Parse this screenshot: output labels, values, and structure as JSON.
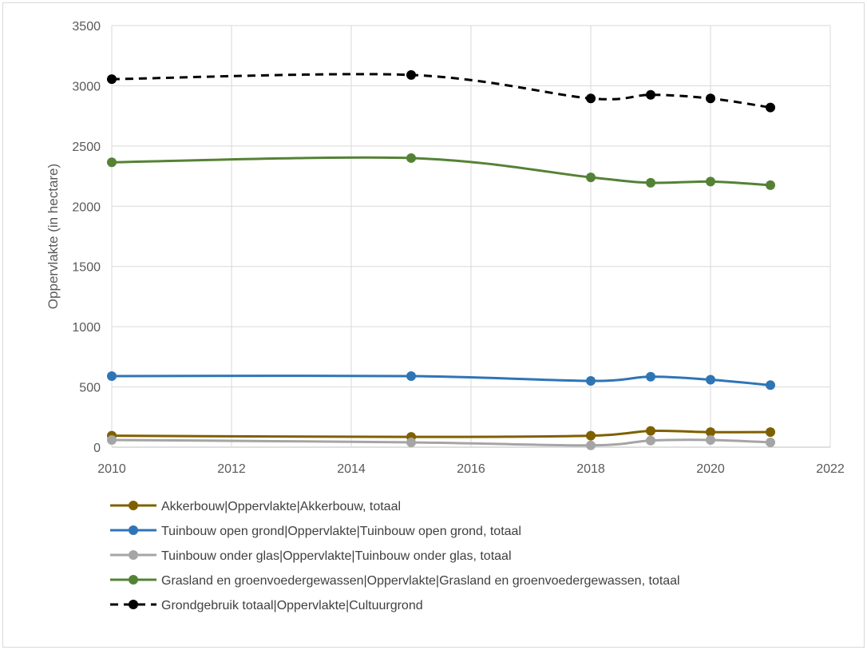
{
  "chart_data": {
    "type": "line",
    "title": "",
    "xlabel": "",
    "ylabel": "Oppervlakte (in hectare)",
    "xlim": [
      2010,
      2022
    ],
    "ylim": [
      0,
      3500
    ],
    "x_ticks": [
      2010,
      2012,
      2014,
      2016,
      2018,
      2020,
      2022
    ],
    "y_ticks": [
      0,
      500,
      1000,
      1500,
      2000,
      2500,
      3000,
      3500
    ],
    "grid": true,
    "legend_position": "bottom",
    "x": [
      2010,
      2015,
      2018,
      2019,
      2020,
      2021
    ],
    "series": [
      {
        "name": "Akkerbouw|Oppervlakte|Akkerbouw, totaal",
        "color": "#7f6000",
        "dashed": false,
        "values": [
          95,
          85,
          95,
          135,
          125,
          125
        ]
      },
      {
        "name": "Tuinbouw open grond|Oppervlakte|Tuinbouw open grond, totaal",
        "color": "#2e75b6",
        "dashed": false,
        "values": [
          590,
          590,
          550,
          585,
          560,
          515
        ]
      },
      {
        "name": "Tuinbouw onder glas|Oppervlakte|Tuinbouw onder glas, totaal",
        "color": "#a5a5a5",
        "dashed": false,
        "values": [
          60,
          40,
          15,
          55,
          60,
          40
        ]
      },
      {
        "name": "Grasland en groenvoedergewassen|Oppervlakte|Grasland en groenvoedergewassen, totaal",
        "color": "#548235",
        "dashed": false,
        "values": [
          2365,
          2400,
          2240,
          2195,
          2205,
          2175
        ]
      },
      {
        "name": "Grondgebruik totaal|Oppervlakte|Cultuurgrond",
        "color": "#000000",
        "dashed": true,
        "values": [
          3055,
          3090,
          2895,
          2925,
          2895,
          2820
        ]
      }
    ]
  }
}
